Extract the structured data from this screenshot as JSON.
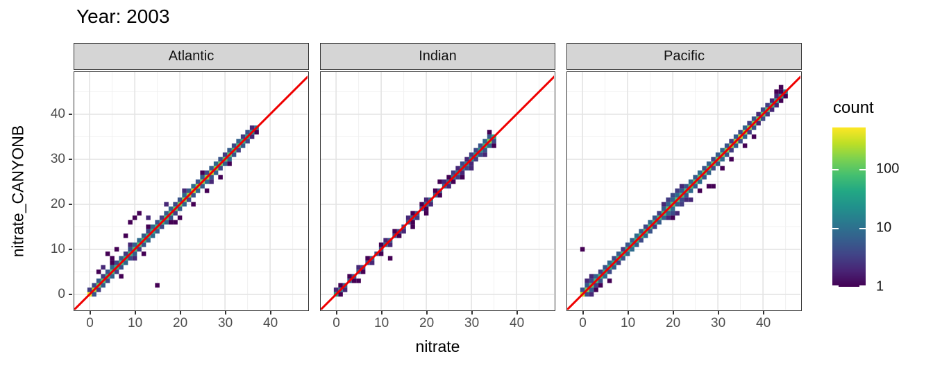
{
  "title": "Year: 2003",
  "axes": {
    "x_label": "nitrate",
    "y_label": "nitrate_CANYONB",
    "x_ticks": [
      0,
      10,
      20,
      30,
      40
    ],
    "y_ticks": [
      0,
      10,
      20,
      30,
      40
    ],
    "minor_ticks": [
      5,
      15,
      25,
      35,
      45
    ],
    "xlim": [
      -3.4,
      48.8
    ],
    "ylim": [
      -3.4,
      49.8
    ]
  },
  "legend": {
    "title": "count",
    "ticks": [
      100,
      10,
      1
    ],
    "scale": "log10",
    "max_count": 500
  },
  "colors": {
    "identity_line": "#ef0000",
    "strip_bg": "#d5d5d5",
    "panel_border": "#333333",
    "grid_major": "#e4e4e4",
    "grid_minor": "#f1f1f1",
    "tick_label": "#4d4d4d",
    "viridis_stops": [
      "#440154",
      "#482475",
      "#414487",
      "#355f8d",
      "#2a788e",
      "#21918c",
      "#22a884",
      "#44bf70",
      "#7ad151",
      "#bddf26",
      "#fde725"
    ]
  },
  "chart_data": {
    "type": "heatmap",
    "subtype": "2d-binned-scatter (geom_bin2d), facetted by ocean, identity line y=x in red",
    "title": "Year: 2003",
    "xlabel": "nitrate",
    "ylabel": "nitrate_CANYONB",
    "legend_title": "count",
    "legend_position": "right",
    "grid": true,
    "bin_size": 1,
    "color_scale": {
      "type": "viridis",
      "transform": "log10",
      "domain": [
        1,
        500
      ]
    },
    "panels": [
      {
        "label": "Atlantic",
        "diag_start": 0,
        "diag_counts": [
          450,
          220,
          120,
          90,
          70,
          80,
          60,
          70,
          50,
          60,
          80,
          90,
          70,
          60,
          50,
          60,
          70,
          80,
          90,
          100,
          130,
          160,
          200,
          260,
          200,
          160,
          200,
          260,
          160,
          120,
          100,
          90,
          80,
          70,
          60,
          40,
          25,
          12
        ],
        "fringe_up": [
          3,
          4,
          6,
          3,
          5,
          8,
          4,
          6,
          3,
          5,
          7,
          9,
          6,
          4,
          8,
          5,
          3,
          6,
          7,
          4,
          5,
          8,
          6,
          9,
          5,
          7,
          4,
          6,
          8,
          5,
          3,
          6,
          4,
          7,
          3,
          5,
          2,
          0
        ],
        "fringe_down": [
          0,
          5,
          3,
          6,
          4,
          7,
          3,
          5,
          8,
          4,
          6,
          3,
          5,
          7,
          9,
          6,
          4,
          8,
          5,
          3,
          6,
          7,
          4,
          5,
          8,
          6,
          9,
          5,
          7,
          4,
          6,
          8,
          5,
          3,
          6,
          4,
          2,
          1
        ],
        "extra_bins": [
          [
            4,
            9,
            1
          ],
          [
            5,
            8,
            1
          ],
          [
            6,
            10,
            1
          ],
          [
            9,
            16,
            1
          ],
          [
            10,
            17,
            1
          ],
          [
            11,
            18,
            1
          ],
          [
            13,
            17,
            2
          ],
          [
            8,
            13,
            1
          ],
          [
            15,
            2,
            1
          ],
          [
            20,
            17,
            1
          ],
          [
            23,
            20,
            1
          ],
          [
            26,
            23,
            1
          ],
          [
            3,
            6,
            2
          ],
          [
            17,
            20,
            2
          ],
          [
            29,
            26,
            1
          ],
          [
            12,
            9,
            1
          ],
          [
            7,
            4,
            1
          ],
          [
            5,
            7,
            1
          ],
          [
            9,
            11,
            2
          ],
          [
            13,
            15,
            1
          ],
          [
            21,
            23,
            2
          ],
          [
            25,
            27,
            1
          ],
          [
            10,
            8,
            2
          ],
          [
            18,
            16,
            1
          ],
          [
            27,
            25,
            2
          ],
          [
            31,
            29,
            1
          ],
          [
            2,
            5,
            1
          ],
          [
            19,
            16,
            1
          ]
        ]
      },
      {
        "label": "Indian",
        "diag_start": 0,
        "diag_counts": [
          35,
          12,
          8,
          6,
          5,
          6,
          4,
          5,
          6,
          5,
          6,
          8,
          6,
          5,
          4,
          5,
          6,
          8,
          6,
          5,
          8,
          10,
          8,
          6,
          8,
          10,
          12,
          15,
          12,
          15,
          20,
          25,
          30,
          60,
          150,
          40
        ],
        "fringe_up": [
          2,
          1,
          0,
          1,
          0,
          2,
          0,
          1,
          0,
          0,
          1,
          2,
          0,
          1,
          0,
          0,
          2,
          1,
          0,
          1,
          2,
          0,
          1,
          0,
          2,
          1,
          3,
          2,
          4,
          2,
          3,
          4,
          5,
          8,
          6,
          0
        ],
        "fringe_down": [
          0,
          1,
          2,
          0,
          1,
          0,
          1,
          0,
          2,
          0,
          1,
          0,
          2,
          0,
          1,
          2,
          0,
          1,
          3,
          0,
          1,
          2,
          0,
          1,
          0,
          2,
          1,
          3,
          2,
          4,
          2,
          3,
          4,
          5,
          8,
          4
        ],
        "extra_bins": [
          [
            12,
            8,
            1
          ],
          [
            20,
            18,
            1
          ],
          [
            28,
            26,
            1
          ],
          [
            33,
            31,
            2
          ],
          [
            35,
            33,
            1
          ],
          [
            34,
            36,
            1
          ],
          [
            5,
            3,
            1
          ],
          [
            17,
            15,
            1
          ],
          [
            23,
            25,
            1
          ],
          [
            30,
            28,
            2
          ]
        ]
      },
      {
        "label": "Pacific",
        "diag_start": 0,
        "diag_counts": [
          280,
          150,
          90,
          70,
          60,
          50,
          60,
          50,
          60,
          70,
          60,
          50,
          60,
          70,
          80,
          70,
          60,
          70,
          80,
          90,
          100,
          90,
          80,
          70,
          80,
          90,
          100,
          110,
          100,
          110,
          120,
          130,
          150,
          170,
          200,
          260,
          200,
          170,
          150,
          130,
          110,
          90,
          70,
          50,
          30,
          15
        ],
        "fringe_up": [
          5,
          6,
          4,
          7,
          3,
          5,
          8,
          4,
          6,
          3,
          5,
          7,
          9,
          6,
          4,
          8,
          5,
          3,
          6,
          7,
          8,
          9,
          6,
          5,
          8,
          6,
          9,
          5,
          7,
          4,
          6,
          8,
          5,
          3,
          6,
          4,
          7,
          3,
          5,
          2,
          4,
          3,
          2,
          2,
          1,
          0
        ],
        "fringe_down": [
          0,
          4,
          6,
          3,
          5,
          8,
          4,
          6,
          3,
          5,
          7,
          9,
          6,
          4,
          8,
          5,
          3,
          6,
          7,
          8,
          9,
          6,
          4,
          5,
          8,
          6,
          9,
          5,
          7,
          4,
          6,
          8,
          5,
          3,
          6,
          4,
          7,
          3,
          5,
          2,
          4,
          3,
          2,
          2,
          1,
          1
        ],
        "extra_bins": [
          [
            19,
            17,
            2
          ],
          [
            20,
            18,
            4
          ],
          [
            20,
            17,
            1
          ],
          [
            21,
            18,
            2
          ],
          [
            19,
            21,
            3
          ],
          [
            20,
            22,
            4
          ],
          [
            21,
            23,
            3
          ],
          [
            22,
            24,
            2
          ],
          [
            18,
            20,
            2
          ],
          [
            22,
            20,
            3
          ],
          [
            23,
            21,
            2
          ],
          [
            0,
            10,
            1
          ],
          [
            28,
            24,
            1
          ],
          [
            29,
            24,
            1
          ],
          [
            31,
            28,
            1
          ],
          [
            26,
            23,
            1
          ],
          [
            36,
            33,
            1
          ],
          [
            38,
            35,
            1
          ],
          [
            33,
            30,
            1
          ],
          [
            2,
            4,
            2
          ],
          [
            1,
            3,
            2
          ],
          [
            4,
            2,
            1
          ],
          [
            2,
            0,
            2
          ],
          [
            24,
            21,
            2
          ],
          [
            3,
            1,
            1
          ],
          [
            6,
            3,
            1
          ],
          [
            44,
            46,
            1
          ],
          [
            43,
            45,
            1
          ]
        ]
      }
    ]
  }
}
